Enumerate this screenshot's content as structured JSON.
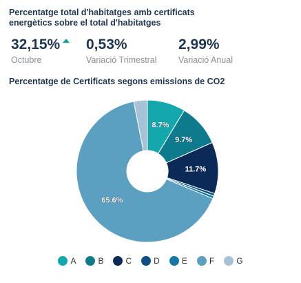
{
  "header": {
    "title_line1": "Percentatge total d'habitatges amb certificats",
    "title_line2": "energètics sobre el total d'habitatges"
  },
  "kpis": [
    {
      "value": "32,15%",
      "caption": "Octubre",
      "trend": "up",
      "trend_color": "#14a3a6"
    },
    {
      "value": "0,53%",
      "caption": "Variació Trimestral"
    },
    {
      "value": "2,99%",
      "caption": "Variació Anual"
    }
  ],
  "chart_data": {
    "type": "pie",
    "title": "Percentatge de Certificats segons emissions de CO2",
    "donut": true,
    "categories": [
      "A",
      "B",
      "C",
      "D",
      "E",
      "F",
      "G"
    ],
    "values": [
      8.7,
      9.7,
      11.7,
      0.6,
      0.6,
      65.6,
      3.1
    ],
    "data_labels": [
      "8.7%",
      "9.7%",
      "11.7%",
      "",
      "",
      "65.6%",
      ""
    ],
    "colors": [
      "#14a8ad",
      "#0e7b8c",
      "#0c2a58",
      "#0d4f82",
      "#1577a3",
      "#5b9fc1",
      "#a7c2d6"
    ],
    "legend_position": "bottom"
  }
}
